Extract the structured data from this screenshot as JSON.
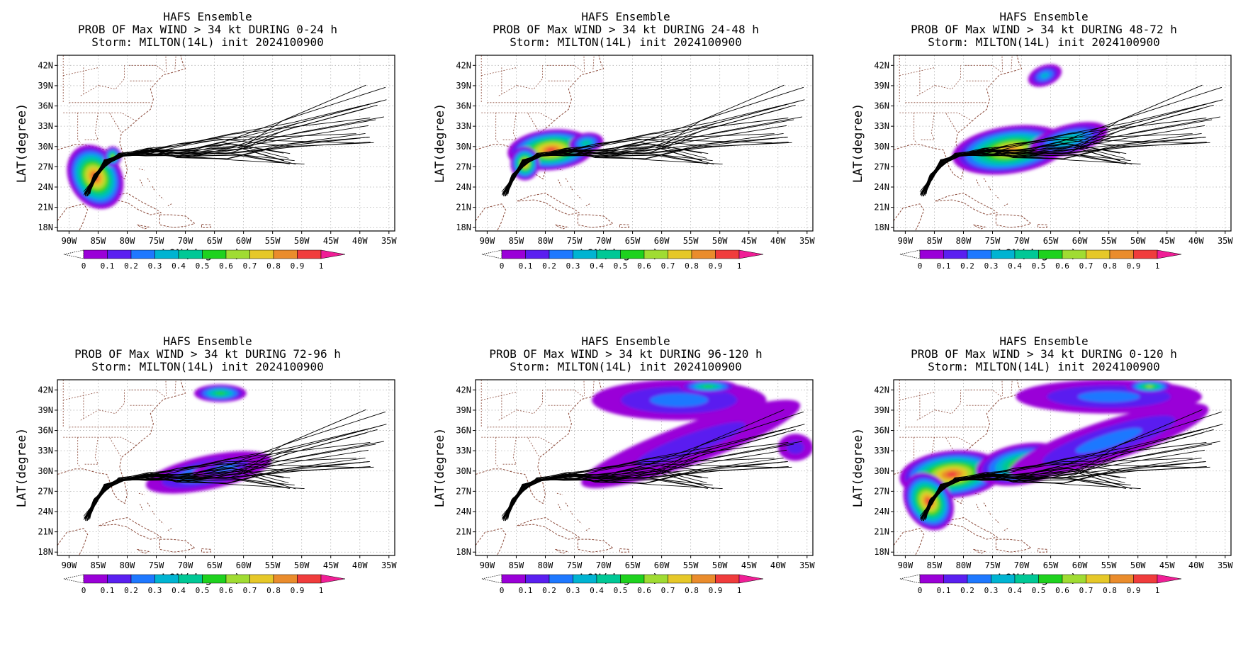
{
  "figure": {
    "title_line1": "HAFS Ensemble",
    "title_line3": "Storm: MILTON(14L) init 2024100900",
    "xlabel": "LON(degree)",
    "ylabel": "LAT(degree)",
    "lon_ticks": [
      "90W",
      "85W",
      "80W",
      "75W",
      "70W",
      "65W",
      "60W",
      "55W",
      "50W",
      "45W",
      "40W",
      "35W"
    ],
    "lat_ticks": [
      "42N",
      "39N",
      "36N",
      "33N",
      "30N",
      "27N",
      "24N",
      "21N",
      "18N"
    ],
    "lon_range": [
      -92,
      -34
    ],
    "lat_range": [
      17.5,
      43.5
    ],
    "colorbar": {
      "labels": [
        "0",
        "0.1",
        "0.2",
        "0.3",
        "0.4",
        "0.5",
        "0.6",
        "0.7",
        "0.8",
        "0.9",
        "1"
      ],
      "colors": [
        "#9a00d8",
        "#5a1ff0",
        "#1e78ff",
        "#00b4d2",
        "#00c896",
        "#1ed21e",
        "#a0dc32",
        "#e6c828",
        "#ea8c2c",
        "#f03c3c",
        "#f01e96"
      ]
    }
  },
  "panels": [
    {
      "title_line2": "PROB OF Max WIND > 34 kt DURING  0-24 h"
    },
    {
      "title_line2": "PROB OF Max WIND > 34 kt DURING 24-48 h"
    },
    {
      "title_line2": "PROB OF Max WIND > 34 kt DURING 48-72 h"
    },
    {
      "title_line2": "PROB OF Max WIND > 34 kt DURING 72-96 h"
    },
    {
      "title_line2": "PROB OF Max WIND > 34 kt DURING 96-120 h"
    },
    {
      "title_line2": "PROB OF Max WIND > 34 kt DURING 0-120 h"
    }
  ],
  "swaths": [
    [
      {
        "lon": -85.5,
        "lat": 25.5,
        "rx": 4.5,
        "ry": 5,
        "p": 0.9,
        "rot": -30
      },
      {
        "lon": -82.5,
        "lat": 28.5,
        "rx": 1.5,
        "ry": 1.5,
        "p": 0.6,
        "rot": 0
      }
    ],
    [
      {
        "lon": -79,
        "lat": 29.5,
        "rx": 7.5,
        "ry": 3,
        "p": 0.9,
        "rot": -5
      },
      {
        "lon": -83.5,
        "lat": 27.5,
        "rx": 2.5,
        "ry": 2.5,
        "p": 0.8,
        "rot": 0
      },
      {
        "lon": -73,
        "lat": 30.5,
        "rx": 3,
        "ry": 1.5,
        "p": 0.4,
        "rot": -10
      }
    ],
    [
      {
        "lon": -72,
        "lat": 29.5,
        "rx": 10,
        "ry": 3.5,
        "p": 0.8,
        "rot": -8
      },
      {
        "lon": -62,
        "lat": 31,
        "rx": 7,
        "ry": 2.2,
        "p": 0.4,
        "rot": -15
      },
      {
        "lon": -66,
        "lat": 40.5,
        "rx": 3,
        "ry": 1.5,
        "p": 0.3,
        "rot": -20
      }
    ],
    [
      {
        "lon": -66,
        "lat": 29.8,
        "rx": 11,
        "ry": 2.5,
        "p": 0.3,
        "rot": -12
      },
      {
        "lon": -64,
        "lat": 41.5,
        "rx": 4.5,
        "ry": 1.3,
        "p": 0.5,
        "rot": 0
      },
      {
        "lon": -63,
        "lat": 30.5,
        "rx": 6,
        "ry": 1.5,
        "p": 0.15,
        "rot": -12
      }
    ],
    [
      {
        "lon": -55,
        "lat": 34,
        "rx": 20,
        "ry": 3,
        "p": 0.1,
        "rot": -20
      },
      {
        "lon": -57,
        "lat": 40.5,
        "rx": 15,
        "ry": 3,
        "p": 0.15,
        "rot": 0
      },
      {
        "lon": -52,
        "lat": 42.5,
        "rx": 5,
        "ry": 1,
        "p": 0.5,
        "rot": 0
      },
      {
        "lon": -37,
        "lat": 33.5,
        "rx": 3,
        "ry": 2,
        "p": 0.1,
        "rot": 0
      }
    ],
    [
      {
        "lon": -82,
        "lat": 29.5,
        "rx": 9,
        "ry": 3.5,
        "p": 0.9,
        "rot": -5
      },
      {
        "lon": -86,
        "lat": 25.5,
        "rx": 4,
        "ry": 4.5,
        "p": 0.9,
        "rot": -30
      },
      {
        "lon": -70,
        "lat": 31,
        "rx": 8,
        "ry": 3,
        "p": 0.6,
        "rot": -10
      },
      {
        "lon": -55,
        "lat": 34.5,
        "rx": 18,
        "ry": 3,
        "p": 0.15,
        "rot": -18
      },
      {
        "lon": -55,
        "lat": 41,
        "rx": 16,
        "ry": 2.5,
        "p": 0.2,
        "rot": 0
      },
      {
        "lon": -48,
        "lat": 42.5,
        "rx": 4,
        "ry": 1,
        "p": 0.6,
        "rot": 0
      }
    ]
  ]
}
